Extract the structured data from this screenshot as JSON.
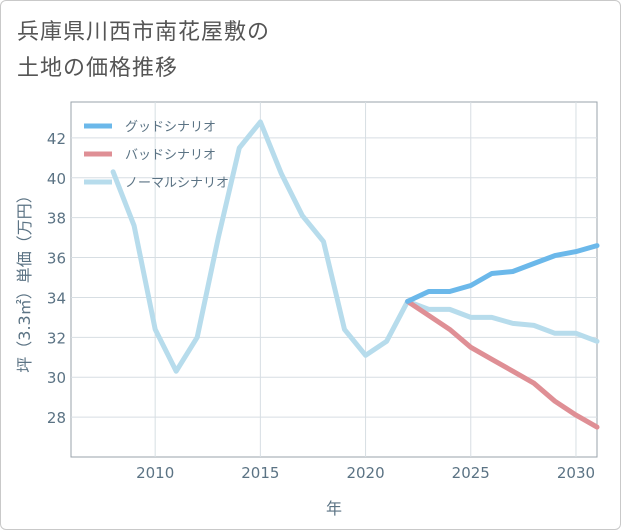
{
  "title_lines": [
    "兵庫県川西市南花屋敷の",
    "土地の価格推移"
  ],
  "chart_data": {
    "type": "line",
    "title": "兵庫県川西市南花屋敷の土地の価格推移",
    "xlabel": "年",
    "ylabel": "坪（3.3㎡）単価（万円）",
    "xlim": [
      2006,
      2031
    ],
    "ylim": [
      26,
      43.8
    ],
    "xticks": [
      2010,
      2015,
      2020,
      2025,
      2030
    ],
    "yticks": [
      28,
      30,
      32,
      34,
      36,
      38,
      40,
      42
    ],
    "grid": true,
    "legend_position": "top-left",
    "series": [
      {
        "name": "グッドシナリオ",
        "color": "#6bb8ea",
        "x": [
          2022,
          2023,
          2024,
          2025,
          2026,
          2027,
          2028,
          2029,
          2030,
          2031
        ],
        "values": [
          33.8,
          34.3,
          34.3,
          34.6,
          35.2,
          35.3,
          35.7,
          36.1,
          36.3,
          36.6
        ]
      },
      {
        "name": "バッドシナリオ",
        "color": "#df8f95",
        "x": [
          2022,
          2023,
          2024,
          2025,
          2026,
          2027,
          2028,
          2029,
          2030,
          2031
        ],
        "values": [
          33.8,
          33.1,
          32.4,
          31.5,
          30.9,
          30.3,
          29.7,
          28.8,
          28.1,
          27.5
        ]
      },
      {
        "name": "ノーマルシナリオ",
        "color": "#b7dcec",
        "x": [
          2008,
          2009,
          2010,
          2011,
          2012,
          2013,
          2014,
          2015,
          2016,
          2017,
          2018,
          2019,
          2020,
          2021,
          2022,
          2023,
          2024,
          2025,
          2026,
          2027,
          2028,
          2029,
          2030,
          2031
        ],
        "values": [
          40.3,
          37.6,
          32.4,
          30.3,
          32.0,
          37.0,
          41.5,
          42.8,
          40.2,
          38.1,
          36.8,
          32.4,
          31.1,
          31.8,
          33.8,
          33.4,
          33.4,
          33.0,
          33.0,
          32.7,
          32.6,
          32.2,
          32.2,
          31.8
        ]
      }
    ]
  }
}
